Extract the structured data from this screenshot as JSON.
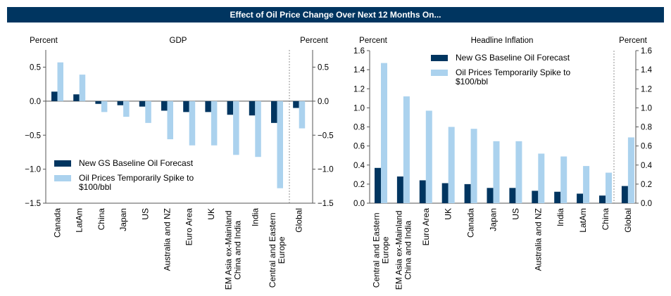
{
  "header": {
    "title": "Effect of Oil Price Change Over Next 12 Months On..."
  },
  "colors": {
    "baseline": "#003560",
    "spike": "#abd2ee",
    "axis": "#555555"
  },
  "chart_data": [
    {
      "type": "bar",
      "title": "GDP",
      "ylabel_left": "Percent",
      "ylabel_right": "Percent",
      "ylim": [
        -1.5,
        0.75
      ],
      "yticks": [
        0.5,
        0.0,
        -0.5,
        -1.0,
        -1.5
      ],
      "ytick_labels": [
        "0.5",
        "0.0",
        "−0.5",
        "−1.0",
        "−1.5"
      ],
      "legend_position": "bottom-left",
      "categories": [
        [
          "Canada"
        ],
        [
          "LatAm"
        ],
        [
          "China"
        ],
        [
          "Japan"
        ],
        [
          "US"
        ],
        [
          "Australia and NZ"
        ],
        [
          "Euro Area"
        ],
        [
          "UK"
        ],
        [
          "EM Asia ex-Mainland",
          "China and India"
        ],
        [
          "India"
        ],
        [
          "Central and Eastern",
          "Europe"
        ],
        [
          "Global"
        ]
      ],
      "separator_before_last": true,
      "series": [
        {
          "name": "New GS Baseline Oil Forecast",
          "values": [
            0.14,
            0.1,
            -0.04,
            -0.06,
            -0.08,
            -0.14,
            -0.16,
            -0.16,
            -0.2,
            -0.21,
            -0.32,
            -0.1
          ]
        },
        {
          "name": "Oil Prices Temporarily Spike to $100/bbl",
          "values": [
            0.57,
            0.39,
            -0.16,
            -0.23,
            -0.32,
            -0.56,
            -0.65,
            -0.65,
            -0.79,
            -0.82,
            -1.28,
            -0.4
          ]
        }
      ]
    },
    {
      "type": "bar",
      "title": "Headline Inflation",
      "ylabel_left": "Percent",
      "ylabel_right": "Percent",
      "ylim": [
        0.0,
        1.6
      ],
      "yticks": [
        1.6,
        1.4,
        1.2,
        1.0,
        0.8,
        0.6,
        0.4,
        0.2,
        0.0
      ],
      "ytick_labels": [
        "1.6",
        "1.4",
        "1.2",
        "1.0",
        "0.8",
        "0.6",
        "0.4",
        "0.2",
        "0.0"
      ],
      "legend_position": "top-center",
      "categories": [
        [
          "Central and Eastern",
          "Europe"
        ],
        [
          "EM Asia ex-Mainland",
          "China and India"
        ],
        [
          "Euro Area"
        ],
        [
          "UK"
        ],
        [
          "Canada"
        ],
        [
          "Japan"
        ],
        [
          "US"
        ],
        [
          "Australia and NZ"
        ],
        [
          "India"
        ],
        [
          "LatAm"
        ],
        [
          "China"
        ],
        [
          "Global"
        ]
      ],
      "separator_before_last": true,
      "series": [
        {
          "name": "New GS Baseline Oil Forecast",
          "values": [
            0.37,
            0.28,
            0.24,
            0.21,
            0.2,
            0.16,
            0.16,
            0.13,
            0.12,
            0.1,
            0.08,
            0.18
          ]
        },
        {
          "name": "Oil Prices Temporarily Spike to $100/bbl",
          "values": [
            1.47,
            1.12,
            0.97,
            0.8,
            0.78,
            0.65,
            0.65,
            0.52,
            0.49,
            0.39,
            0.32,
            0.69
          ]
        }
      ]
    }
  ],
  "legend": {
    "items": [
      {
        "label_lines": [
          "New GS Baseline Oil Forecast"
        ]
      },
      {
        "label_lines": [
          "Oil Prices Temporarily Spike to",
          "$100/bbl"
        ]
      }
    ]
  }
}
